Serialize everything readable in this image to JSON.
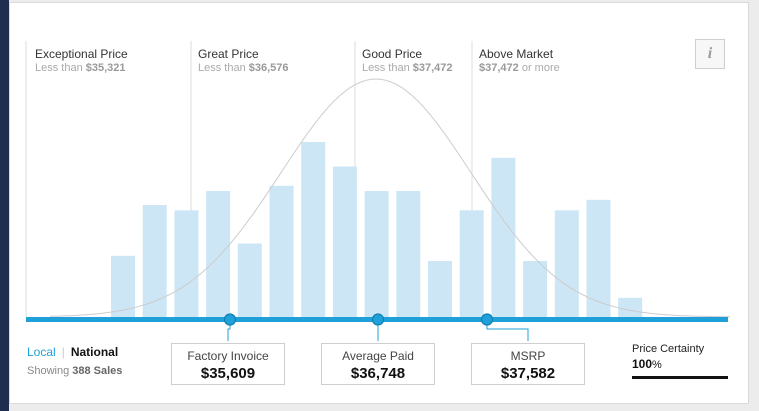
{
  "colors": {
    "accent": "#1fa0d8",
    "bar_fill": "#cde6f5",
    "curve": "#cccccc",
    "nav_bar": "#1f2d4e"
  },
  "tiers": [
    {
      "title": "Exceptional Price",
      "prefix": "Less than ",
      "price": "$35,321",
      "suffix": ""
    },
    {
      "title": "Great Price",
      "prefix": "Less than ",
      "price": "$36,576",
      "suffix": ""
    },
    {
      "title": "Good Price",
      "prefix": "Less than ",
      "price": "$37,472",
      "suffix": ""
    },
    {
      "title": "Above Market",
      "prefix": "",
      "price": "$37,472",
      "suffix": " or more"
    }
  ],
  "info_icon": {
    "glyph": "i",
    "icon": "info-icon"
  },
  "histogram": {
    "bar_levels": [
      0.35,
      0.64,
      0.61,
      0.72,
      0.42,
      0.75,
      1.0,
      0.86,
      0.72,
      0.72,
      0.32,
      0.61,
      0.91,
      0.32,
      0.61,
      0.67,
      0.11
    ],
    "markers": [
      "factory_invoice",
      "average_paid",
      "msrp"
    ]
  },
  "toggle": {
    "local": "Local",
    "national": "National"
  },
  "sales": {
    "prefix": "Showing ",
    "count": "388 Sales"
  },
  "prices": {
    "factory_invoice": {
      "label": "Factory Invoice",
      "value": "$35,609"
    },
    "average_paid": {
      "label": "Average Paid",
      "value": "$36,748"
    },
    "msrp": {
      "label": "MSRP",
      "value": "$37,582"
    }
  },
  "price_certainty": {
    "label": "Price Certainty",
    "value": "100",
    "unit": "%"
  }
}
